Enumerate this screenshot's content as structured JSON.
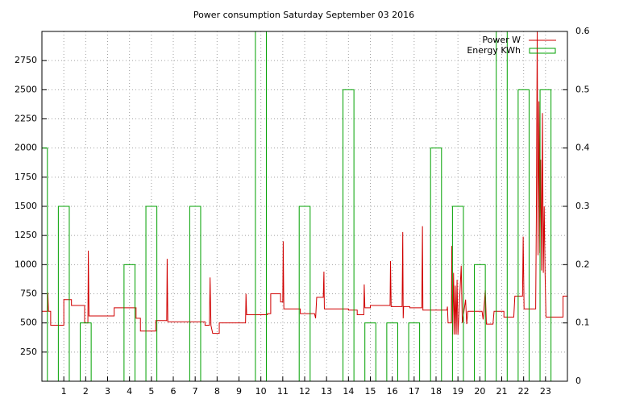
{
  "chart_data": {
    "type": "line",
    "title": "Power consumption Saturday September 03 2016",
    "xlim": [
      0,
      24
    ],
    "xticks": [
      1,
      2,
      3,
      4,
      5,
      6,
      7,
      8,
      9,
      10,
      11,
      12,
      13,
      14,
      15,
      16,
      17,
      18,
      19,
      20,
      21,
      22,
      23
    ],
    "ylim": [
      0,
      3000
    ],
    "yticks": [
      250,
      500,
      750,
      1000,
      1250,
      1500,
      1750,
      2000,
      2250,
      2500,
      2750
    ],
    "y2lim": [
      0,
      0.6
    ],
    "y2ticks": [
      0,
      0.1,
      0.2,
      0.3,
      0.4,
      0.5,
      0.6
    ],
    "grid": true,
    "legend": "upper right",
    "series": [
      {
        "name": "Power W",
        "color": "#d00000",
        "type": "line",
        "x": [
          0,
          0.25,
          0.27,
          0.3,
          0.4,
          0.4,
          1.0,
          1.0,
          1.35,
          1.35,
          1.95,
          1.95,
          2.1,
          2.12,
          2.15,
          3.3,
          3.3,
          4.3,
          4.3,
          4.5,
          4.5,
          5.2,
          5.2,
          5.7,
          5.72,
          5.75,
          7.45,
          7.45,
          7.65,
          7.68,
          7.72,
          7.8,
          8.1,
          8.1,
          9.3,
          9.32,
          9.35,
          10.3,
          10.3,
          10.45,
          10.45,
          10.9,
          10.9,
          11.0,
          11.02,
          11.05,
          11.8,
          11.8,
          12.45,
          12.5,
          12.55,
          12.85,
          12.88,
          12.9,
          14.0,
          14.0,
          14.4,
          14.4,
          14.7,
          14.72,
          14.75,
          15.0,
          15.0,
          15.9,
          15.92,
          15.95,
          16.45,
          16.48,
          16.5,
          16.52,
          16.8,
          16.8,
          17.35,
          17.38,
          17.4,
          18.5,
          18.52,
          18.55,
          18.7,
          18.72,
          18.76,
          18.8,
          18.84,
          18.88,
          18.92,
          18.96,
          19.0,
          19.15,
          19.2,
          19.35,
          19.4,
          19.45,
          20.1,
          20.15,
          20.25,
          20.3,
          20.6,
          20.65,
          21.1,
          21.1,
          21.55,
          21.6,
          21.95,
          21.98,
          22.02,
          22.55,
          22.58,
          22.62,
          22.66,
          22.7,
          22.74,
          22.78,
          22.82,
          22.86,
          22.9,
          22.94,
          22.98,
          23.02,
          23.8,
          23.8,
          24
        ],
        "values": [
          600,
          600,
          760,
          600,
          600,
          480,
          480,
          700,
          700,
          650,
          650,
          500,
          500,
          1120,
          560,
          560,
          630,
          630,
          540,
          540,
          430,
          430,
          520,
          520,
          1050,
          510,
          510,
          480,
          480,
          890,
          480,
          410,
          410,
          500,
          500,
          750,
          570,
          570,
          580,
          580,
          750,
          750,
          680,
          680,
          1200,
          620,
          620,
          580,
          580,
          540,
          720,
          720,
          940,
          620,
          620,
          610,
          610,
          570,
          570,
          830,
          630,
          630,
          650,
          650,
          1030,
          640,
          640,
          1280,
          540,
          640,
          640,
          630,
          630,
          1330,
          610,
          610,
          640,
          500,
          500,
          1160,
          400,
          930,
          400,
          820,
          400,
          870,
          400,
          990,
          500,
          700,
          490,
          600,
          600,
          530,
          780,
          490,
          490,
          600,
          600,
          550,
          550,
          730,
          730,
          1240,
          620,
          620,
          1380,
          3000,
          1080,
          2400,
          1100,
          1900,
          950,
          2300,
          930,
          1500,
          930,
          550,
          550,
          730,
          730
        ]
      },
      {
        "name": "Energy KWh",
        "color": "#00a000",
        "type": "bar",
        "axis": "y2",
        "x": [
          0,
          1,
          2,
          3,
          4,
          5,
          6,
          7,
          8,
          9,
          10,
          11,
          12,
          13,
          14,
          15,
          16,
          17,
          18,
          19,
          20,
          21,
          22,
          23
        ],
        "values": [
          0.4,
          0.3,
          0.1,
          0,
          0.2,
          0.3,
          0,
          0.3,
          0,
          0,
          0.6,
          0,
          0.3,
          0,
          0.5,
          0.1,
          0.1,
          0.1,
          0.4,
          0.3,
          0.2,
          0.6,
          0.5,
          0.5
        ]
      }
    ]
  }
}
